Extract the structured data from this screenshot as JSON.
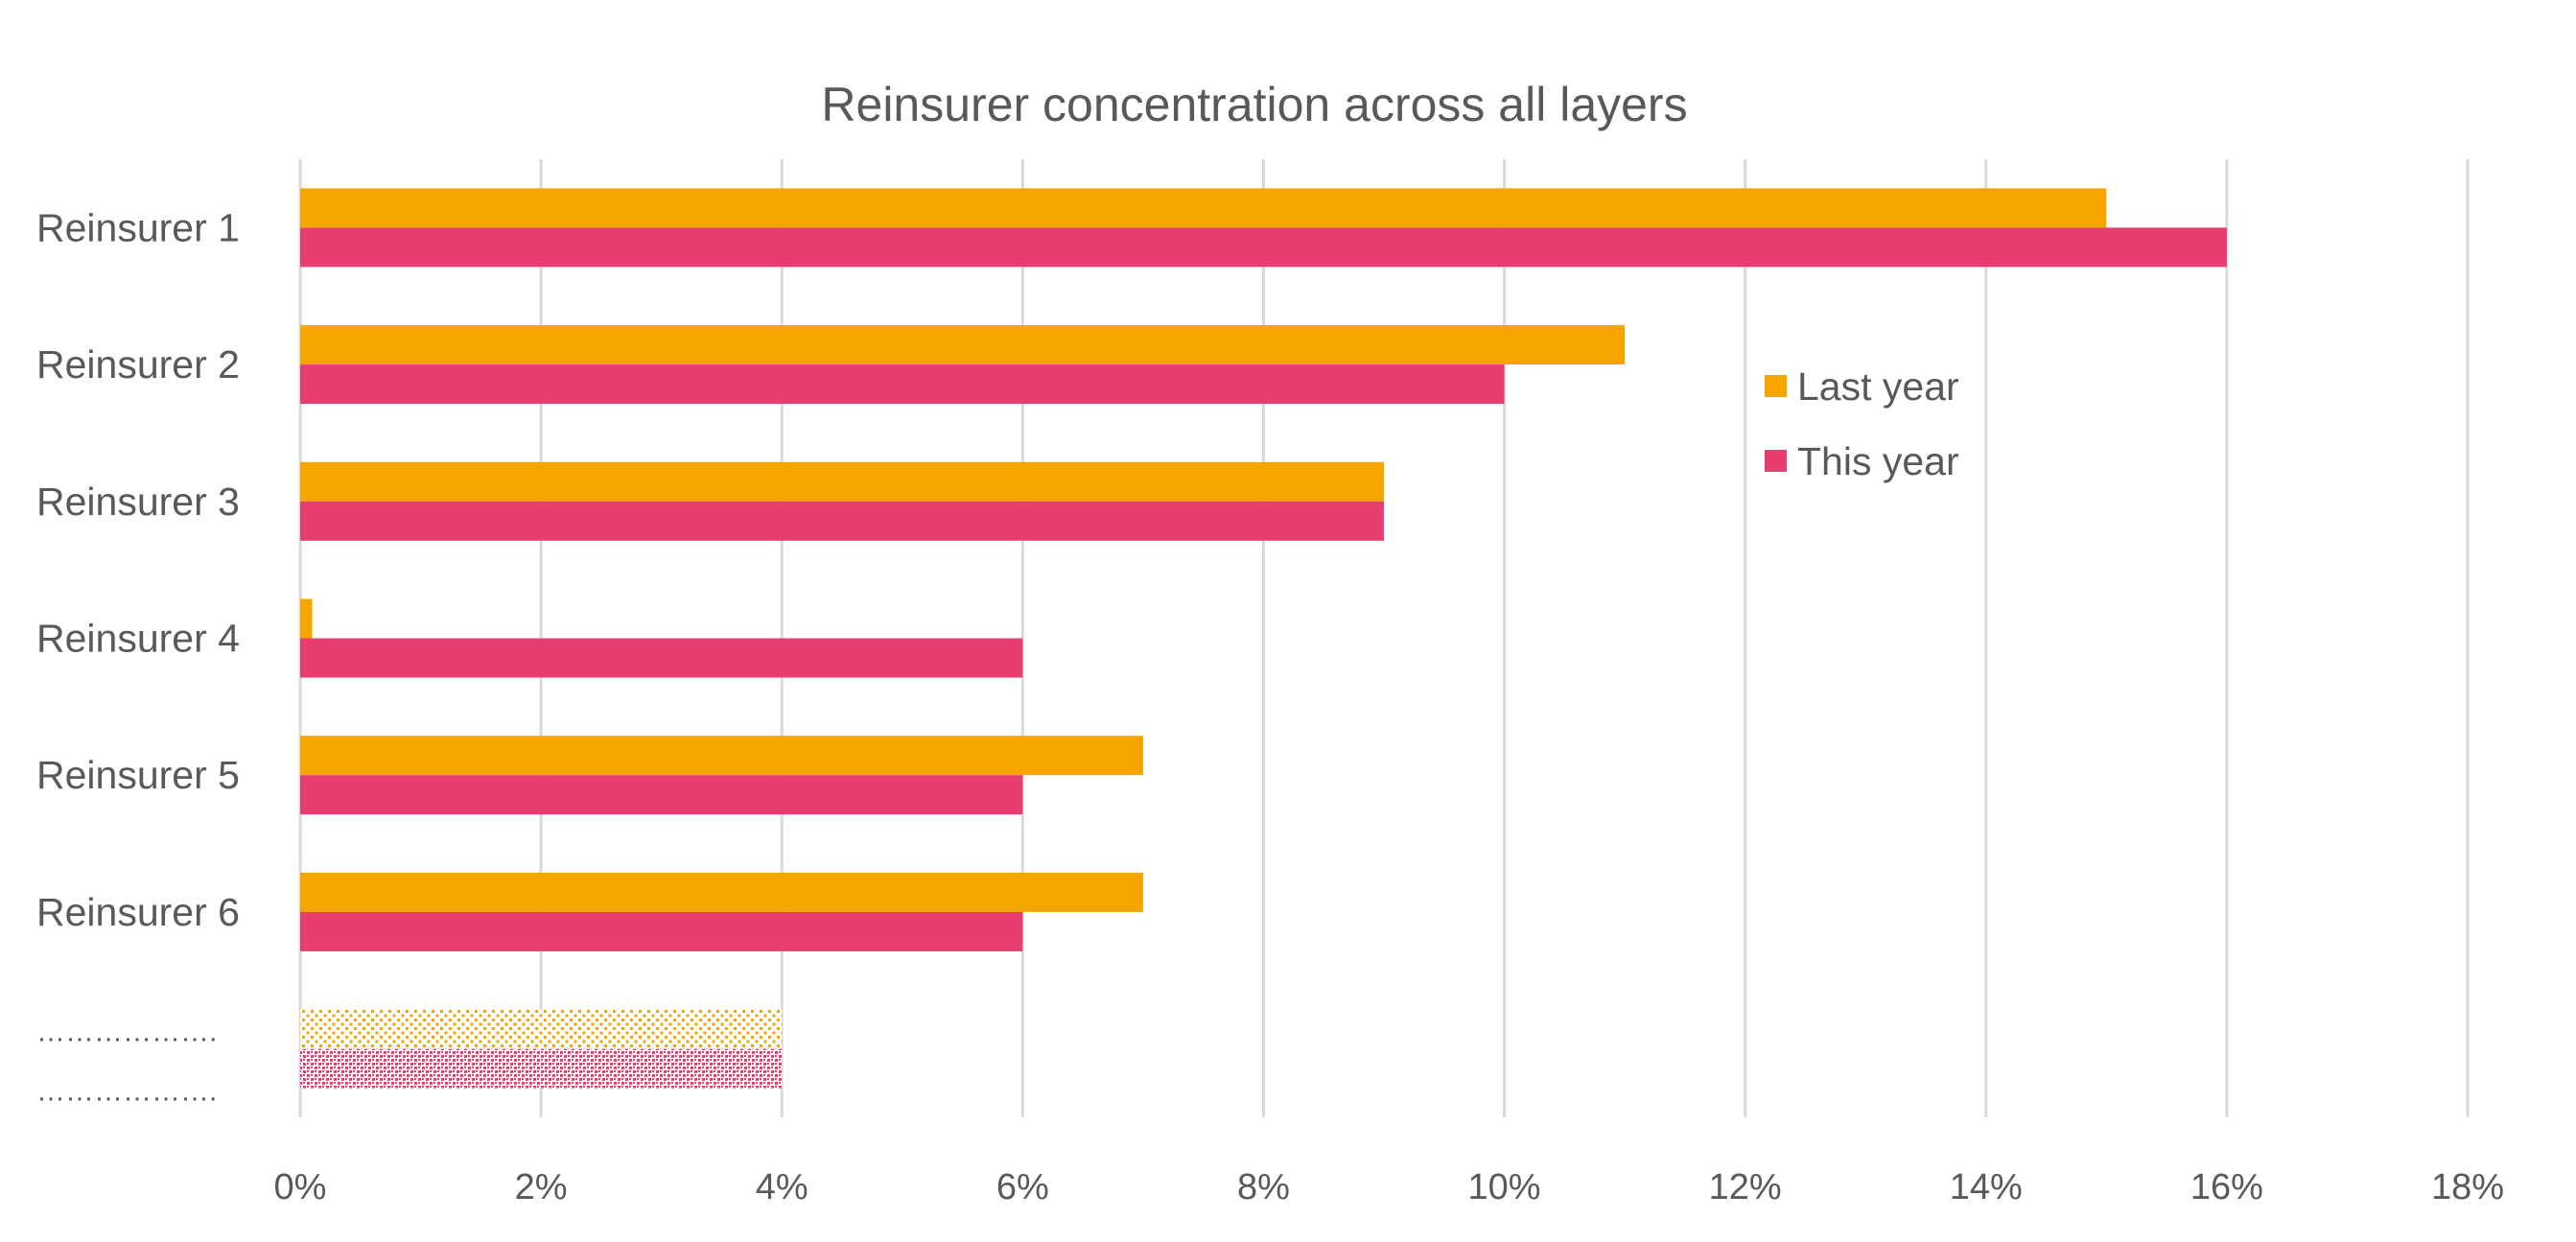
{
  "chart_data": {
    "type": "bar",
    "orientation": "horizontal",
    "title": "Reinsurer concentration across all layers",
    "categories": [
      "Reinsurer 1",
      "Reinsurer 2",
      "Reinsurer 3",
      "Reinsurer 4",
      "Reinsurer 5",
      "Reinsurer 6",
      "……………….."
    ],
    "placeholder_label_lines": [
      "……………….",
      "………………."
    ],
    "series": [
      {
        "name": "Last year",
        "color": "#F5A500",
        "values": [
          15,
          11,
          9,
          0.1,
          7,
          7,
          4
        ]
      },
      {
        "name": "This year",
        "color": "#E83E6F",
        "values": [
          16,
          10,
          9,
          6,
          6,
          6,
          4
        ]
      }
    ],
    "patterned_categories": [
      "……………….."
    ],
    "xlim": [
      0,
      18
    ],
    "xticks": [
      0,
      2,
      4,
      6,
      8,
      10,
      12,
      14,
      16,
      18
    ],
    "xtick_labels": [
      "0%",
      "2%",
      "4%",
      "6%",
      "8%",
      "10%",
      "12%",
      "14%",
      "16%",
      "18%"
    ],
    "xlabel": "",
    "ylabel": "",
    "grid": "vertical",
    "legend_position": "right-center"
  }
}
